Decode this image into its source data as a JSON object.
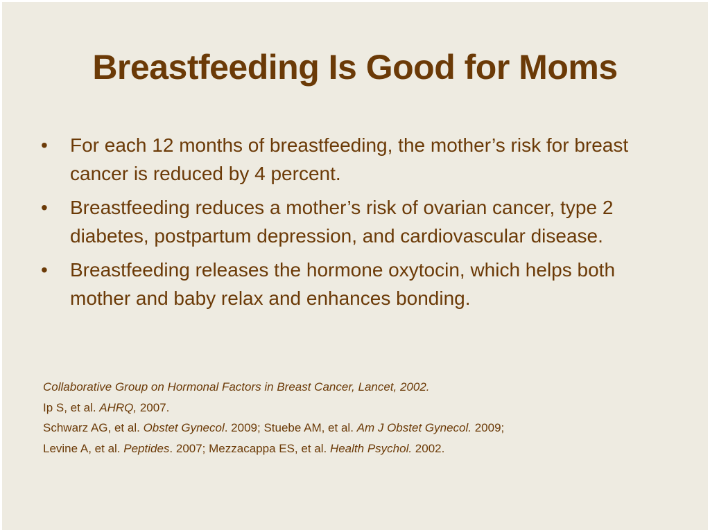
{
  "slide": {
    "title": "Breastfeeding Is Good for Moms",
    "bullets": [
      "For each 12 months of breastfeeding, the mother’s risk for breast cancer is reduced by 4 percent.",
      "Breastfeeding reduces a mother’s risk of ovarian cancer, type 2 diabetes, postpartum depression, and cardiovascular disease.",
      "Breastfeeding releases the hormone oxytocin, which helps both mother and baby relax and enhances bonding."
    ],
    "bullet_glyph": "•",
    "references": {
      "line1": {
        "italic": "Collaborative Group on Hormonal Factors in Breast Cancer, Lancet, 2002."
      },
      "line2": {
        "a": "Ip S, et al. ",
        "b_italic": "AHRQ,",
        "c": " 2007."
      },
      "line3": {
        "a": "Schwarz AG, et al. ",
        "b_italic": "Obstet Gynecol",
        "c": ". 2009; Stuebe AM, et al. ",
        "d_italic": "Am J Obstet Gynecol.",
        "e": " 2009;"
      },
      "line4": {
        "a": "Levine A, et al. ",
        "b_italic": "Peptides",
        "c": ". 2007; Mezzacappa ES, et al. ",
        "d_italic": "Health Psychol.",
        "e": " 2002."
      }
    },
    "colors": {
      "background": "#eeebe1",
      "text": "#6b3a07"
    }
  }
}
